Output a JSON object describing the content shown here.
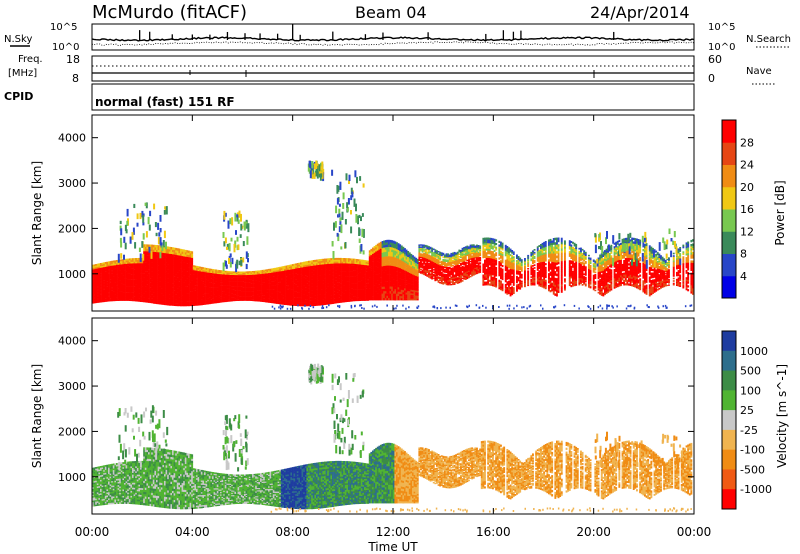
{
  "header": {
    "station": "McMurdo (fitACF)",
    "beam": "Beam 04",
    "date": "24/Apr/2014"
  },
  "noise_panel": {
    "left_label": "N.Sky",
    "left_ticks": [
      "10^5",
      "10^0"
    ],
    "right_label": "N.Search",
    "right_ticks": [
      "10^5",
      "10^0"
    ]
  },
  "freq_panel": {
    "left_label_line1": "Freq.",
    "left_label_line2": "[MHz]",
    "left_ticks": [
      "18",
      "8"
    ],
    "right_label": "Nave",
    "right_ticks": [
      "60",
      "0"
    ]
  },
  "cpid_panel": {
    "label": "CPID",
    "mode_text": "normal (fast) 151 RF"
  },
  "x_axis": {
    "label": "Time UT",
    "ticks": [
      "00:00",
      "04:00",
      "08:00",
      "12:00",
      "16:00",
      "20:00",
      "00:00"
    ]
  },
  "chart_data": [
    {
      "type": "heatmap",
      "panel": "power",
      "ylabel": "Slant Range [km]",
      "yticks": [
        "1000",
        "2000",
        "3000",
        "4000"
      ],
      "ylim": [
        180,
        4500
      ],
      "xlim_hours": [
        0,
        24
      ],
      "colorbar": {
        "label": "Power [dB]",
        "ticks": [
          "4",
          "8",
          "12",
          "16",
          "20",
          "24",
          "28"
        ],
        "colors": [
          "#0000e6",
          "#2846c8",
          "#3a8a5a",
          "#78c850",
          "#f0c814",
          "#f08c14",
          "#e64614",
          "#ff0000"
        ]
      },
      "echo_regions": [
        {
          "t": [
            0.0,
            11.0
          ],
          "range_km": [
            350,
            1250
          ],
          "power": "high"
        },
        {
          "t": [
            11.0,
            13.0
          ],
          "range_km": [
            400,
            1700
          ],
          "power": "high"
        },
        {
          "t": [
            13.0,
            15.5
          ],
          "range_km": [
            900,
            1600
          ],
          "power": "mixed"
        },
        {
          "t": [
            15.5,
            24.0
          ],
          "range_km": [
            450,
            1900
          ],
          "power": "mixed"
        },
        {
          "t": [
            1.0,
            3.0
          ],
          "range_km": [
            1300,
            2600
          ],
          "power": "low"
        },
        {
          "t": [
            9.5,
            10.8
          ],
          "range_km": [
            1500,
            3300
          ],
          "power": "low"
        }
      ]
    },
    {
      "type": "heatmap",
      "panel": "velocity",
      "ylabel": "Slant Range [km]",
      "yticks": [
        "1000",
        "2000",
        "3000",
        "4000"
      ],
      "ylim": [
        180,
        4500
      ],
      "xlim_hours": [
        0,
        24
      ],
      "colorbar": {
        "label": "Velocity [m s^-1]",
        "ticks": [
          "1000",
          "500",
          "100",
          "25",
          "-25",
          "-100",
          "-500",
          "-1000"
        ],
        "colors": [
          "#1e3ca0",
          "#2d6e8c",
          "#3c8c46",
          "#50b432",
          "#c8c8c8",
          "#f0b450",
          "#f08c14",
          "#f05a14",
          "#ff0000"
        ]
      },
      "echo_regions": [
        {
          "t": [
            0.0,
            11.0
          ],
          "range_km": [
            350,
            1300
          ],
          "velocity": "positive/near-zero"
        },
        {
          "t": [
            7.5,
            8.5
          ],
          "range_km": [
            450,
            1300
          ],
          "velocity": "high positive"
        },
        {
          "t": [
            12.0,
            24.0
          ],
          "range_km": [
            400,
            2000
          ],
          "velocity": "negative"
        }
      ]
    }
  ]
}
